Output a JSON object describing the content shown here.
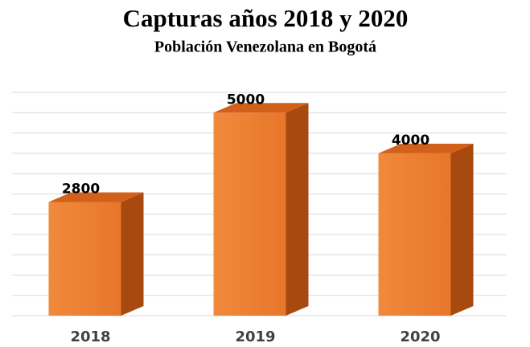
{
  "chart_data": {
    "type": "bar3d",
    "title": "Capturas años 2018 y 2020",
    "subtitle": "Población Venezolana en Bogotá",
    "categories": [
      "2018",
      "2019",
      "2020"
    ],
    "values": [
      2800,
      5000,
      4000
    ],
    "color": "#ed7d31",
    "ylim": [
      0,
      5500
    ],
    "yticks": [
      0,
      500,
      1000,
      1500,
      2000,
      2500,
      3000,
      3500,
      4000,
      4500,
      5000,
      5500
    ],
    "grid": true
  }
}
